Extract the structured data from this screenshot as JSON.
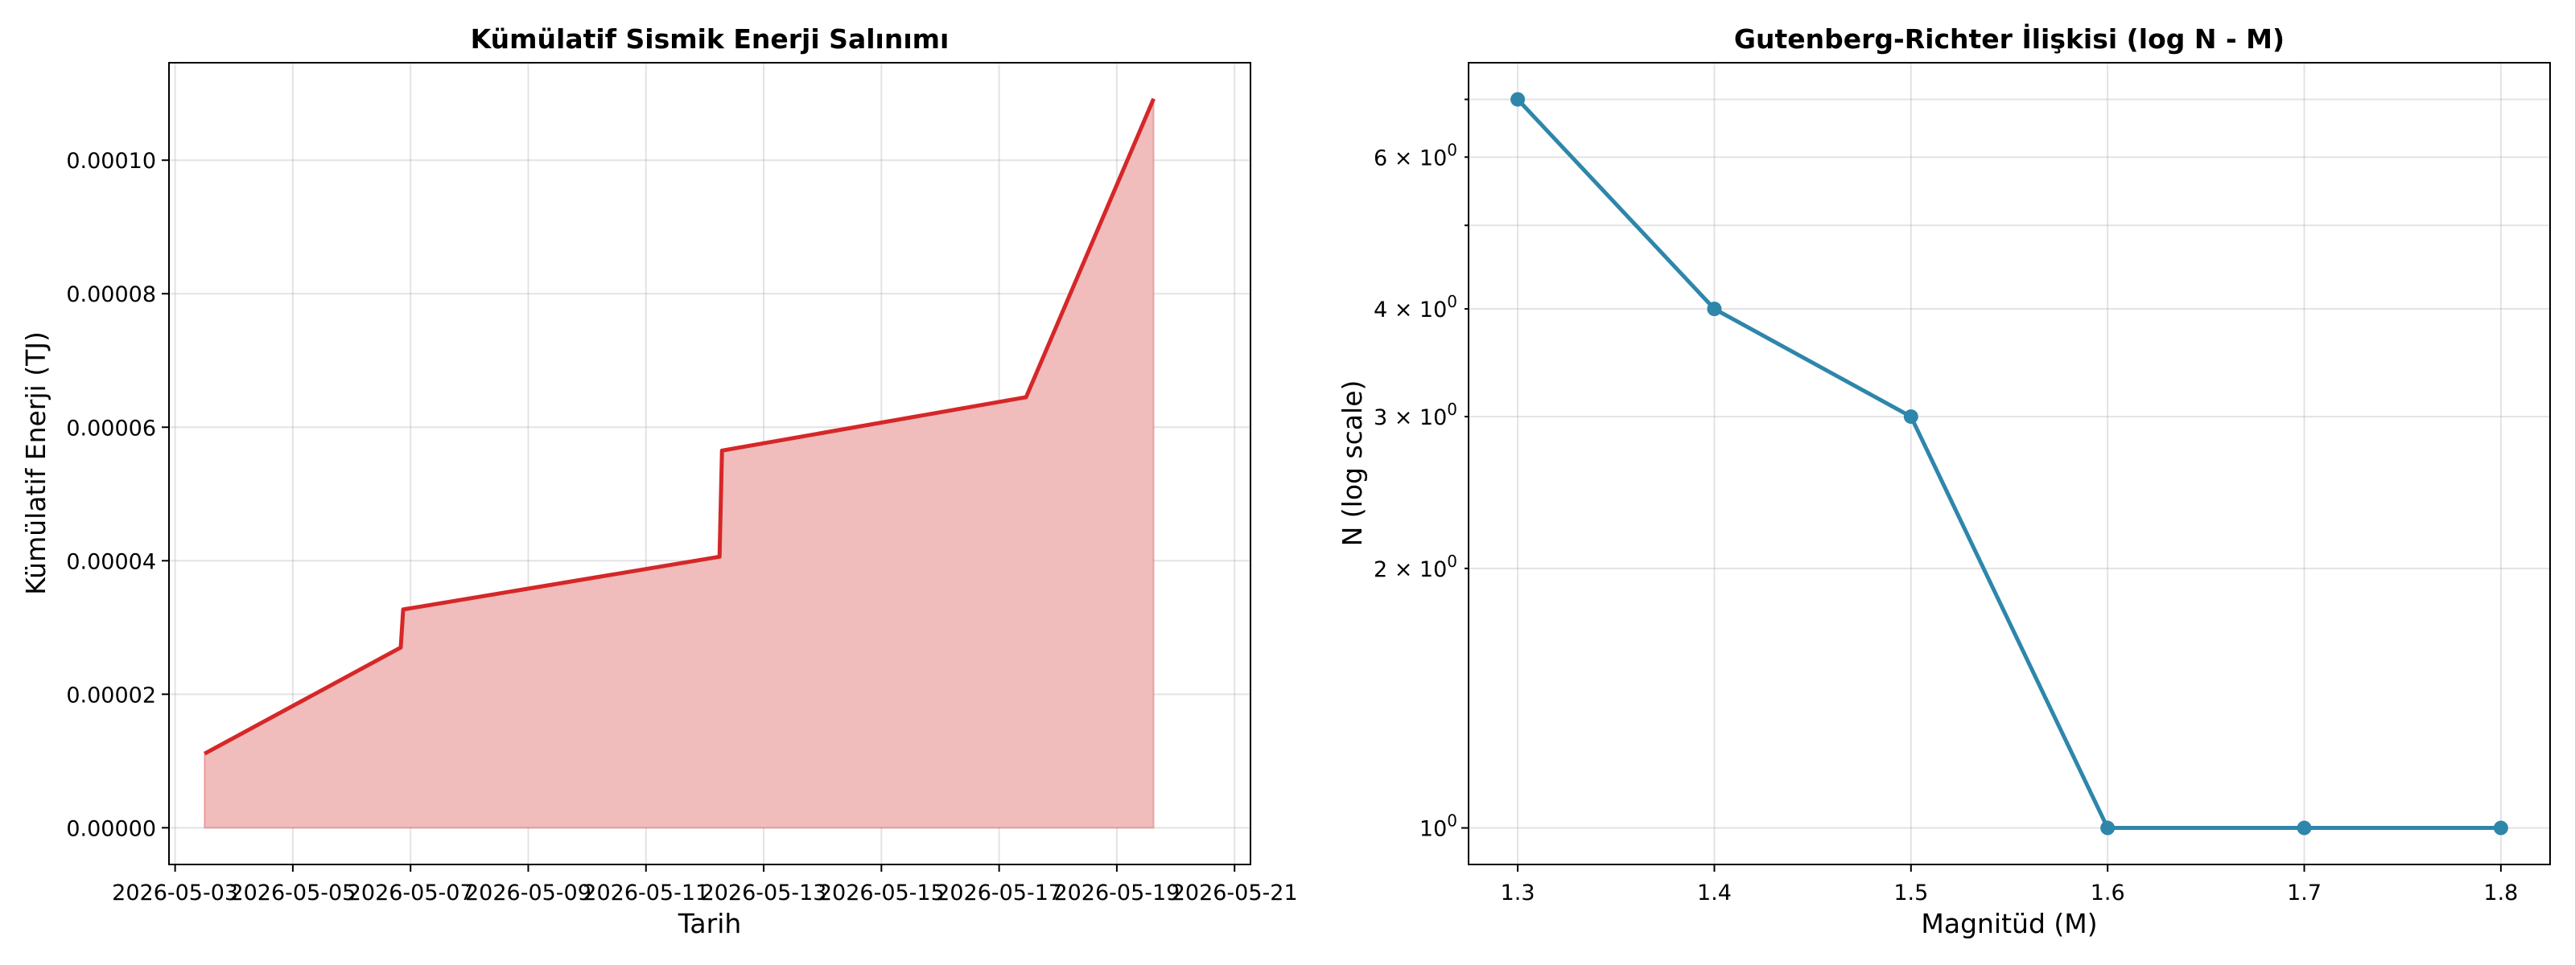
{
  "chart_data": [
    {
      "type": "area",
      "title": "Kümülatif Sismik Enerji Salınımı",
      "xlabel": "Tarih",
      "ylabel": "Kümülatif Enerji (TJ)",
      "x": [
        "2026-05-03T12:00",
        "2026-05-06T20:00",
        "2026-05-06T21:00",
        "2026-05-12T06:00",
        "2026-05-12T07:00",
        "2026-05-17T11:00",
        "2026-05-19T15:00"
      ],
      "values": [
        1.11e-05,
        2.7e-05,
        3.27e-05,
        4.06e-05,
        5.65e-05,
        6.45e-05,
        0.0001092
      ],
      "xticks": [
        "2026-05-03",
        "2026-05-05",
        "2026-05-07",
        "2026-05-09",
        "2026-05-11",
        "2026-05-13",
        "2026-05-15",
        "2026-05-17",
        "2026-05-19",
        "2026-05-21"
      ],
      "yticks": [
        "0.00000",
        "0.00002",
        "0.00004",
        "0.00006",
        "0.00008",
        "0.00010"
      ],
      "ylim": [
        -5.5e-06,
        0.0001146
      ],
      "xlim": [
        "2026-05-02T21:30",
        "2026-05-21T06:30"
      ],
      "grid": true,
      "colors": {
        "line": "#d62728",
        "fill": "#f0bcbc"
      }
    },
    {
      "type": "line",
      "title": "Gutenberg-Richter İlişkisi (log N - M)",
      "xlabel": "Magnitüd (M)",
      "ylabel": "N (log scale)",
      "x": [
        1.3,
        1.4,
        1.5,
        1.6,
        1.7,
        1.8
      ],
      "values": [
        7,
        4,
        3,
        1,
        1,
        1
      ],
      "xticks": [
        "1.3",
        "1.4",
        "1.5",
        "1.6",
        "1.7",
        "1.8"
      ],
      "yticks": [
        {
          "value": 1,
          "base": "10",
          "exp": "0",
          "mant": ""
        },
        {
          "value": 2,
          "base": "10",
          "exp": "0",
          "mant": "2 × "
        },
        {
          "value": 3,
          "base": "10",
          "exp": "0",
          "mant": "3 × "
        },
        {
          "value": 4,
          "base": "10",
          "exp": "0",
          "mant": "4 × "
        },
        {
          "value": 6,
          "base": "10",
          "exp": "0",
          "mant": "6 × "
        }
      ],
      "xlim": [
        1.275,
        1.825
      ],
      "ylim": [
        0.907,
        7.72
      ],
      "yscale": "log",
      "grid": true,
      "colors": {
        "line": "#2e86ab",
        "marker": "#2e86ab"
      }
    }
  ]
}
